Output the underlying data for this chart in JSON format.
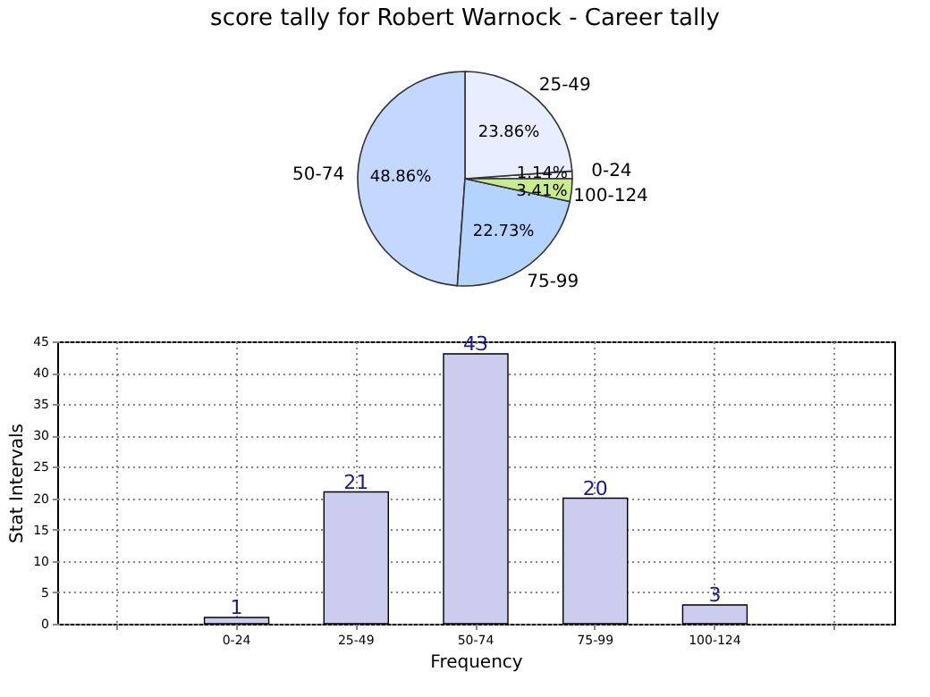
{
  "chart_data": [
    {
      "type": "pie",
      "title": "score tally for Robert Warnock - Career tally",
      "categories": [
        "0-24",
        "25-49",
        "50-74",
        "75-99",
        "100-124"
      ],
      "values": [
        1.14,
        23.86,
        48.86,
        22.73,
        3.41
      ],
      "colors": [
        "#f2f4ff",
        "#e8eeff",
        "#c4d7ff",
        "#b5d3ff",
        "#c8ec8c"
      ],
      "value_labels": [
        "1.14%",
        "23.86%",
        "48.86%",
        "22.73%",
        "3.41%"
      ]
    },
    {
      "type": "bar",
      "categories": [
        null,
        "0-24",
        "25-49",
        "50-74",
        "75-99",
        "100-124",
        null
      ],
      "values": [
        null,
        1,
        21,
        43,
        20,
        3,
        null
      ],
      "color": "#ccccee",
      "xlabel": "Frequency",
      "ylabel": "Stat Intervals",
      "ylim": [
        0,
        45
      ],
      "yticks": [
        0,
        5,
        10,
        15,
        20,
        25,
        30,
        35,
        40,
        45
      ],
      "grid": true,
      "data_labels": true
    }
  ]
}
